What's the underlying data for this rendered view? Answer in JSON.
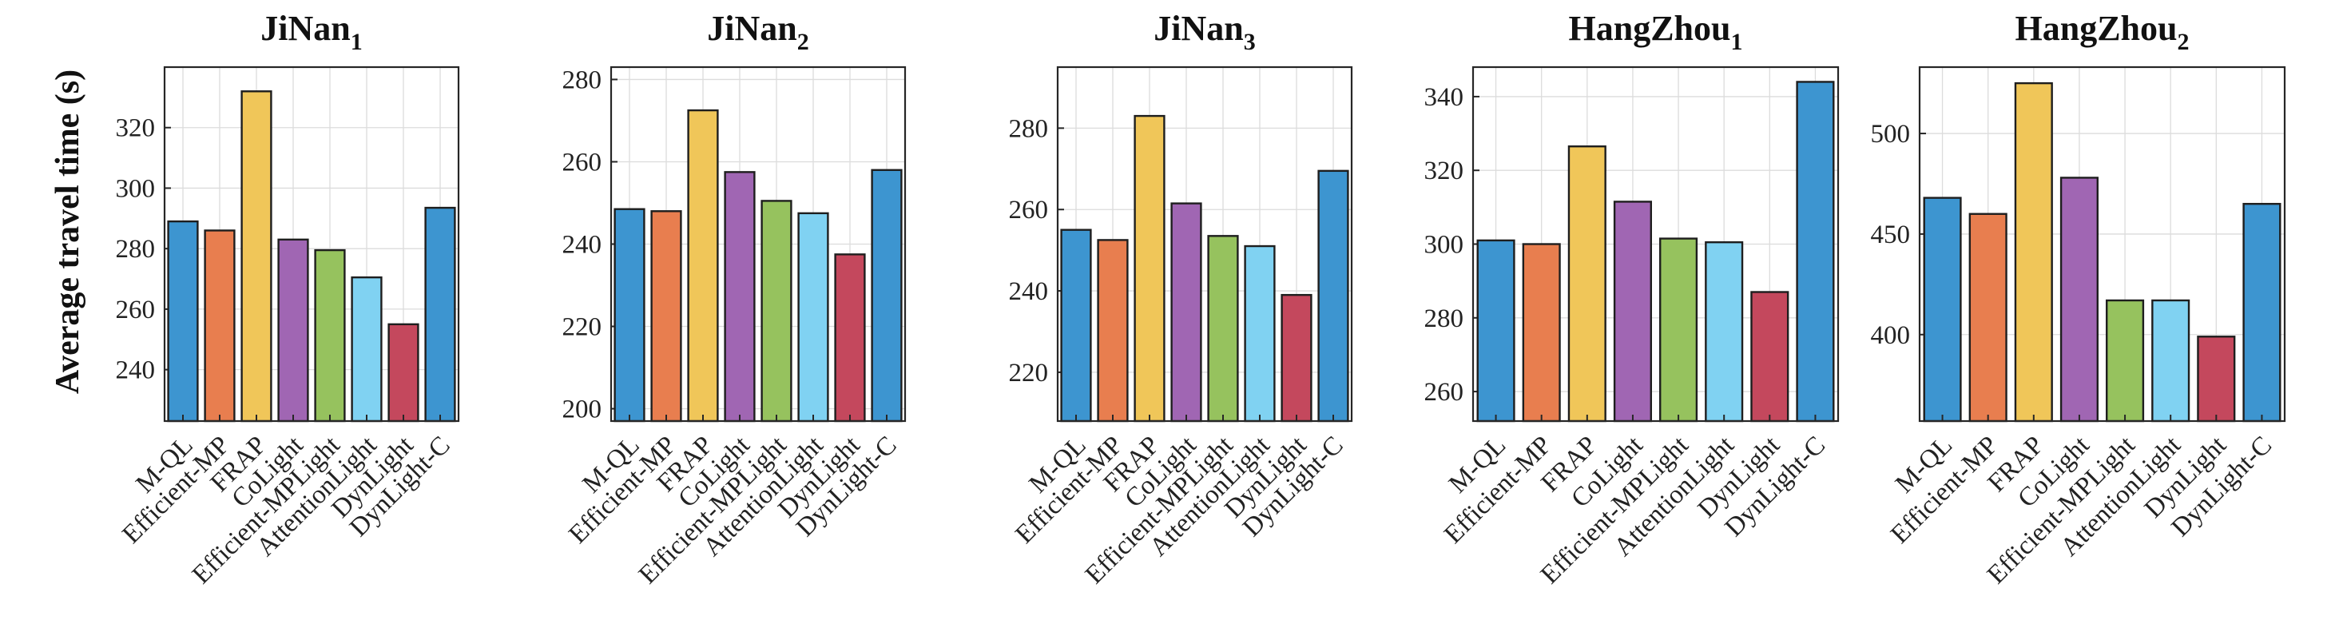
{
  "figure": {
    "ylabel": "Average travel time (s)"
  },
  "colors": {
    "M-QL": "#3d95d0",
    "Efficient-MP": "#e87e4f",
    "FRAP": "#f0c659",
    "CoLight": "#a066b3",
    "Efficient-MPLight": "#96c25e",
    "AttentionLight": "#80d2f2",
    "DynLight": "#c4485d",
    "DynLight-C": "#3d95d0"
  },
  "chart_data": [
    {
      "type": "bar",
      "title": "JiNan",
      "title_sub": "1",
      "categories": [
        "M-QL",
        "Efficient-MP",
        "FRAP",
        "CoLight",
        "Efficient-MPLight",
        "AttentionLight",
        "DynLight",
        "DynLight-C"
      ],
      "values": [
        289,
        286,
        332,
        283,
        279.5,
        270.5,
        255,
        293.5
      ],
      "ylim": [
        223,
        340
      ],
      "yticks": [
        "240",
        "260",
        "280",
        "300",
        "320"
      ],
      "grid": true
    },
    {
      "type": "bar",
      "title": "JiNan",
      "title_sub": "2",
      "categories": [
        "M-QL",
        "Efficient-MP",
        "FRAP",
        "CoLight",
        "Efficient-MPLight",
        "AttentionLight",
        "DynLight",
        "DynLight-C"
      ],
      "values": [
        248.5,
        248,
        272.5,
        257.5,
        250.5,
        247.5,
        237.5,
        258
      ],
      "ylim": [
        197,
        283
      ],
      "yticks": [
        "200",
        "220",
        "240",
        "260",
        "280"
      ],
      "grid": true
    },
    {
      "type": "bar",
      "title": "JiNan",
      "title_sub": "3",
      "categories": [
        "M-QL",
        "Efficient-MP",
        "FRAP",
        "CoLight",
        "Efficient-MPLight",
        "AttentionLight",
        "DynLight",
        "DynLight-C"
      ],
      "values": [
        255,
        252.5,
        283,
        261.5,
        253.5,
        251,
        239,
        269.5
      ],
      "ylim": [
        208,
        295
      ],
      "yticks": [
        "220",
        "240",
        "260",
        "280"
      ],
      "grid": true
    },
    {
      "type": "bar",
      "title": "HangZhou",
      "title_sub": "1",
      "categories": [
        "M-QL",
        "Efficient-MP",
        "FRAP",
        "CoLight",
        "Efficient-MPLight",
        "AttentionLight",
        "DynLight",
        "DynLight-C"
      ],
      "values": [
        301,
        300,
        326.5,
        311.5,
        301.5,
        300.5,
        287,
        344
      ],
      "ylim": [
        252,
        348
      ],
      "yticks": [
        "260",
        "280",
        "300",
        "320",
        "340"
      ],
      "grid": true
    },
    {
      "type": "bar",
      "title": "HangZhou",
      "title_sub": "2",
      "categories": [
        "M-QL",
        "Efficient-MP",
        "FRAP",
        "CoLight",
        "Efficient-MPLight",
        "AttentionLight",
        "DynLight",
        "DynLight-C"
      ],
      "values": [
        468,
        460,
        525,
        478,
        417,
        417,
        399,
        465
      ],
      "ylim": [
        357,
        533
      ],
      "yticks": [
        "400",
        "450",
        "500"
      ],
      "grid": true
    }
  ]
}
